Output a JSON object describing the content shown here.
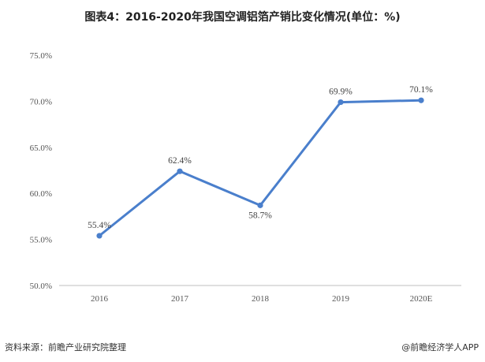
{
  "title": "图表4：2016-2020年我国空调铝箔产销比变化情况(单位：%)",
  "source_label": "资料来源：前瞻产业研究院整理",
  "brand_label": "@前瞻经济学人APP",
  "colors": {
    "line": "#4a7fcc",
    "axis": "#bfbfbf",
    "text": "#555555"
  },
  "chart_data": {
    "type": "line",
    "title": "图表4：2016-2020年我国空调铝箔产销比变化情况(单位：%)",
    "xlabel": "",
    "ylabel": "",
    "categories": [
      "2016",
      "2017",
      "2018",
      "2019",
      "2020E"
    ],
    "series": [
      {
        "values": [
          55.4,
          62.4,
          58.7,
          69.9,
          70.1
        ]
      }
    ],
    "data_labels": [
      "55.4%",
      "62.4%",
      "58.7%",
      "69.9%",
      "70.1%"
    ],
    "yticks": [
      "50.0%",
      "55.0%",
      "60.0%",
      "65.0%",
      "70.0%",
      "75.0%"
    ],
    "ylim": [
      50,
      75
    ],
    "grid": false,
    "legend": "none"
  }
}
